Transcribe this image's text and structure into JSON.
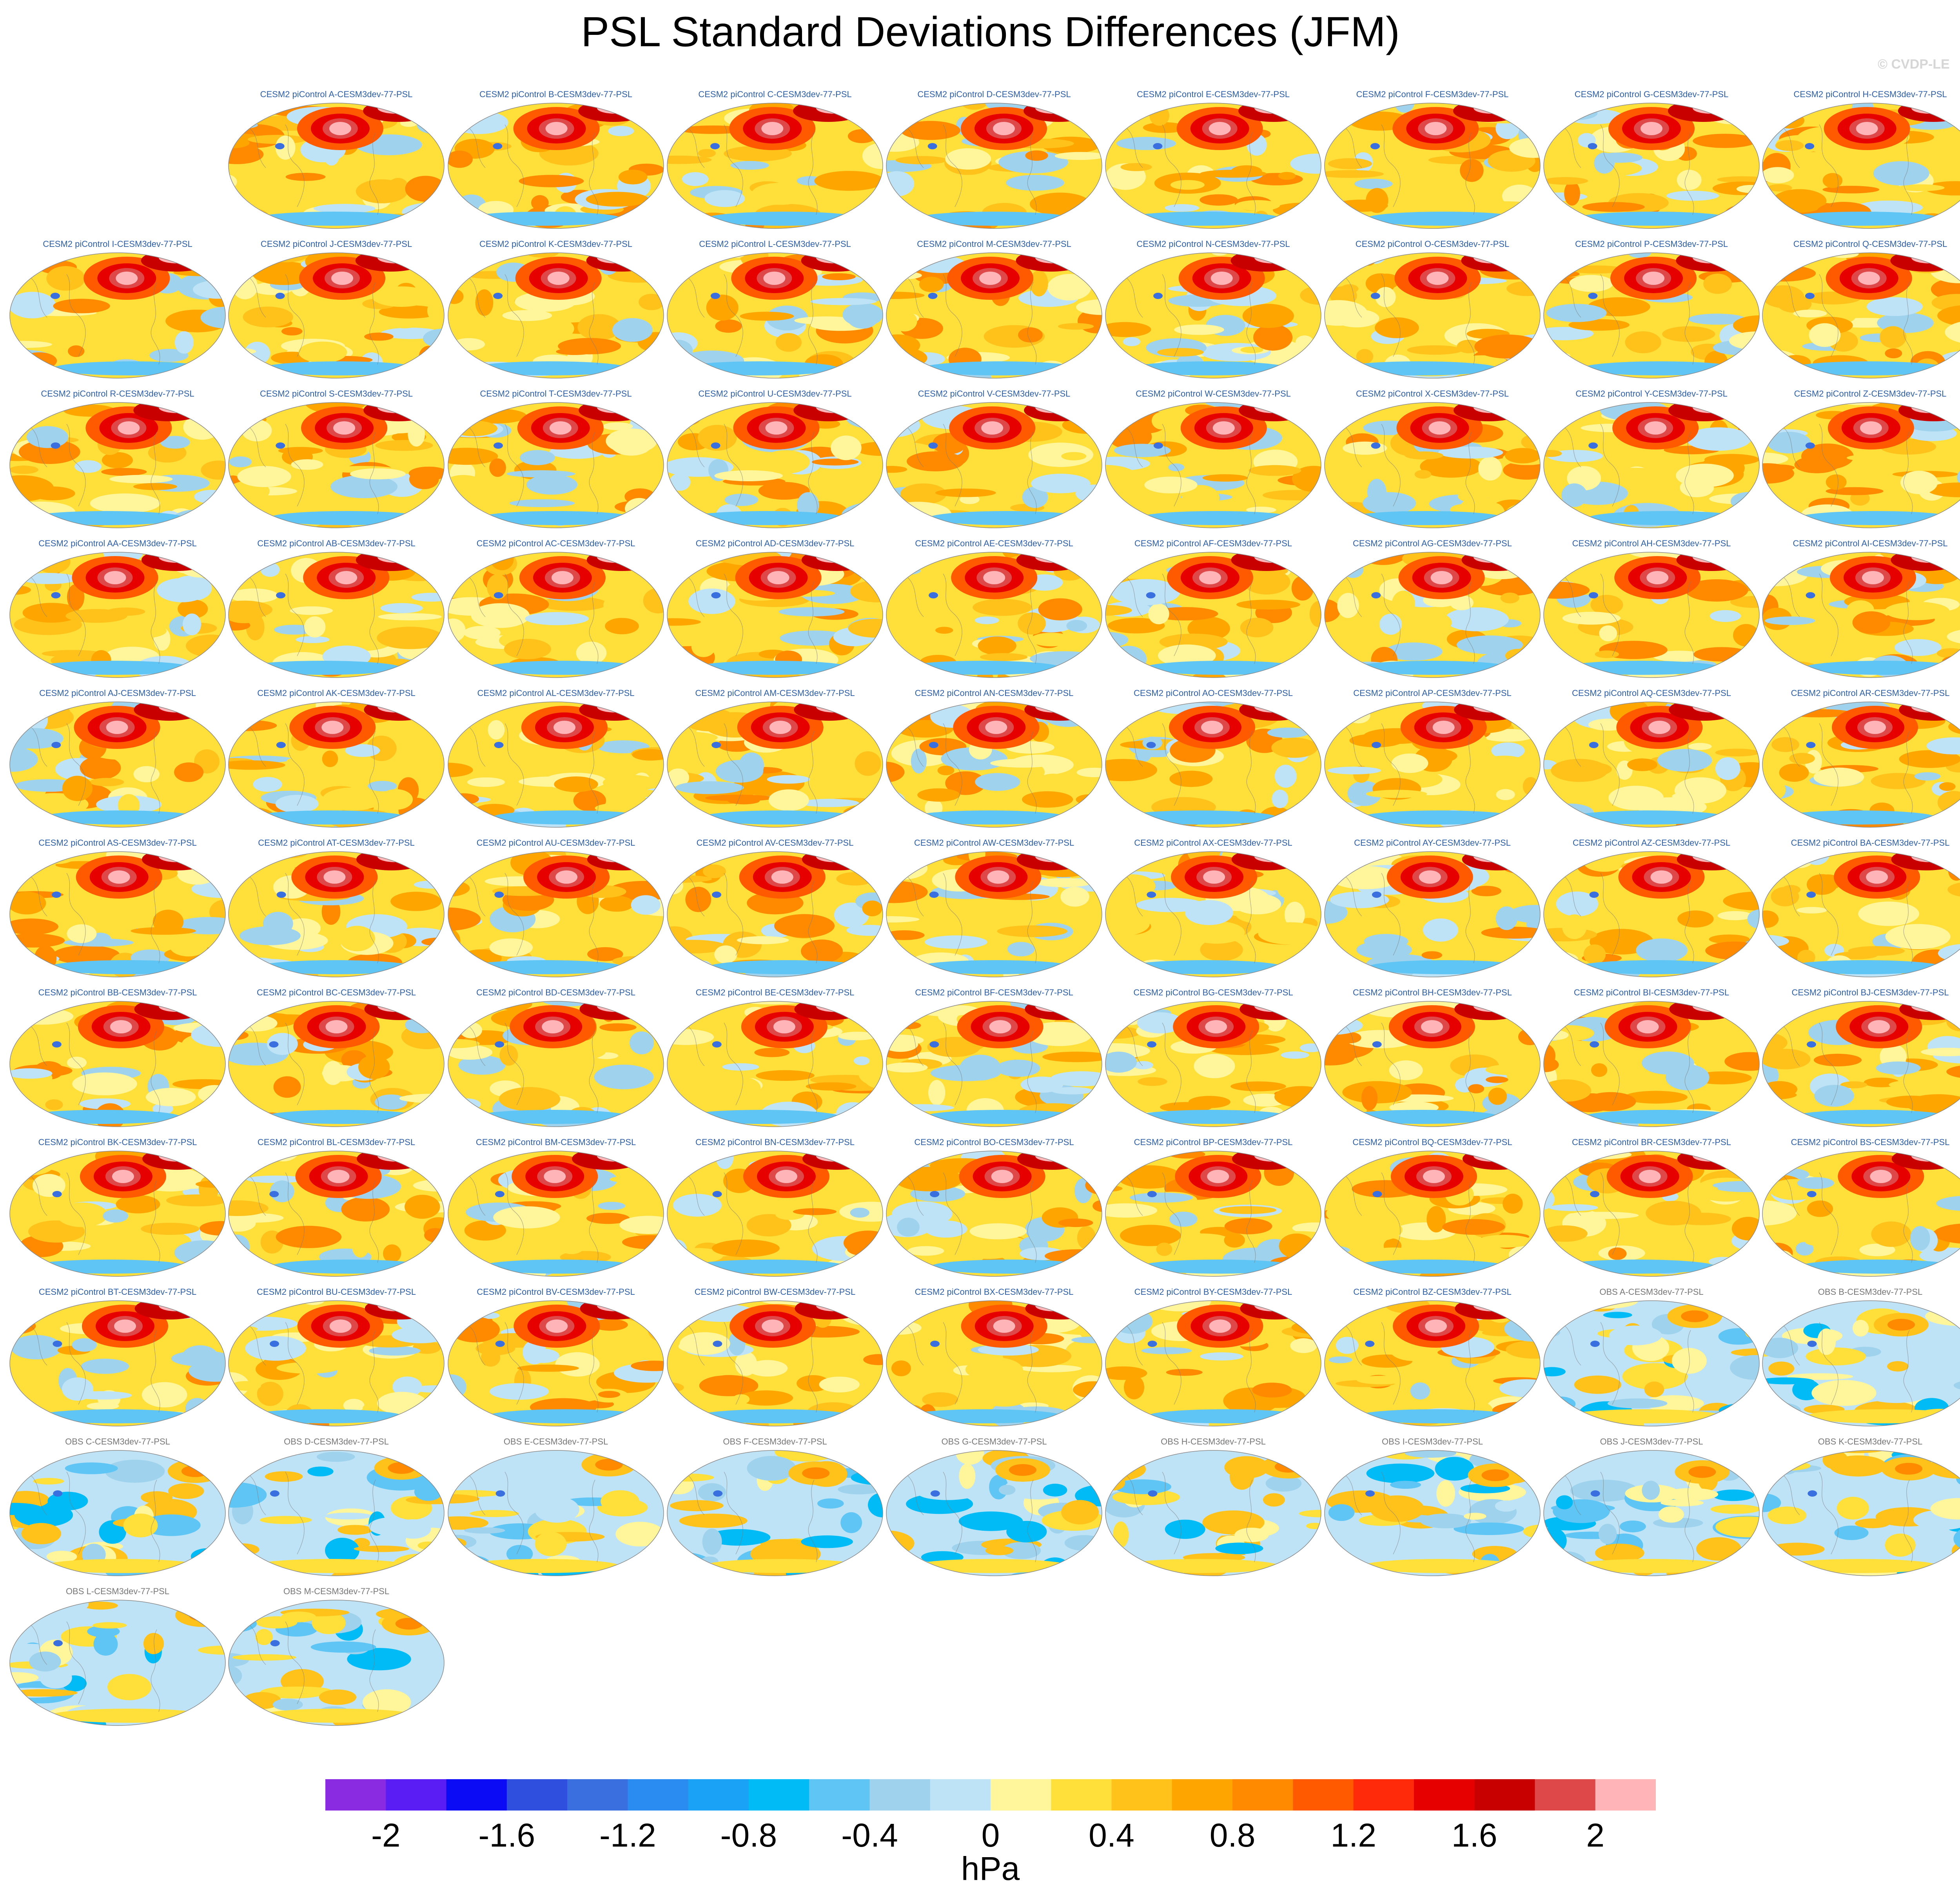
{
  "title": "PSL Standard Deviations Differences (JFM)",
  "watermark": "© CVDP-LE",
  "units": "hPa",
  "colorbar": {
    "colors": [
      "#8a2be2",
      "#5a1ef5",
      "#0b0bf5",
      "#2f4fdf",
      "#3a6fe0",
      "#2a8cf0",
      "#1aa3f6",
      "#00bbf5",
      "#5ec5f5",
      "#9fd2ec",
      "#bfe3f6",
      "#fff59a",
      "#ffdf3a",
      "#ffc21a",
      "#ffa500",
      "#ff8a00",
      "#ff5a00",
      "#ff2a0a",
      "#e60000",
      "#c80000",
      "#de4848",
      "#ffb5b8"
    ],
    "tick_labels": [
      "-2",
      "-1.6",
      "-1.2",
      "-0.8",
      "-0.4",
      "0",
      "0.4",
      "0.8",
      "1.2",
      "1.6",
      "2"
    ]
  },
  "chart_data": {
    "type": "heatmap",
    "title": "PSL Standard Deviations Differences (JFM)",
    "colorbar_units": "hPa",
    "colorbar_range": [
      -2.2,
      2.2
    ],
    "colorbar_interval": 0.2,
    "panels": [
      {
        "label": "CESM2 piControl A-CESM3dev-77-PSL",
        "source": "model"
      },
      {
        "label": "CESM2 piControl B-CESM3dev-77-PSL",
        "source": "model"
      },
      {
        "label": "CESM2 piControl C-CESM3dev-77-PSL",
        "source": "model"
      },
      {
        "label": "CESM2 piControl D-CESM3dev-77-PSL",
        "source": "model"
      },
      {
        "label": "CESM2 piControl E-CESM3dev-77-PSL",
        "source": "model"
      },
      {
        "label": "CESM2 piControl F-CESM3dev-77-PSL",
        "source": "model"
      },
      {
        "label": "CESM2 piControl G-CESM3dev-77-PSL",
        "source": "model"
      },
      {
        "label": "CESM2 piControl H-CESM3dev-77-PSL",
        "source": "model"
      },
      {
        "label": "CESM2 piControl I-CESM3dev-77-PSL",
        "source": "model"
      },
      {
        "label": "CESM2 piControl J-CESM3dev-77-PSL",
        "source": "model"
      },
      {
        "label": "CESM2 piControl K-CESM3dev-77-PSL",
        "source": "model"
      },
      {
        "label": "CESM2 piControl L-CESM3dev-77-PSL",
        "source": "model"
      },
      {
        "label": "CESM2 piControl M-CESM3dev-77-PSL",
        "source": "model"
      },
      {
        "label": "CESM2 piControl N-CESM3dev-77-PSL",
        "source": "model"
      },
      {
        "label": "CESM2 piControl O-CESM3dev-77-PSL",
        "source": "model"
      },
      {
        "label": "CESM2 piControl P-CESM3dev-77-PSL",
        "source": "model"
      },
      {
        "label": "CESM2 piControl Q-CESM3dev-77-PSL",
        "source": "model"
      },
      {
        "label": "CESM2 piControl R-CESM3dev-77-PSL",
        "source": "model"
      },
      {
        "label": "CESM2 piControl S-CESM3dev-77-PSL",
        "source": "model"
      },
      {
        "label": "CESM2 piControl T-CESM3dev-77-PSL",
        "source": "model"
      },
      {
        "label": "CESM2 piControl U-CESM3dev-77-PSL",
        "source": "model"
      },
      {
        "label": "CESM2 piControl V-CESM3dev-77-PSL",
        "source": "model"
      },
      {
        "label": "CESM2 piControl W-CESM3dev-77-PSL",
        "source": "model"
      },
      {
        "label": "CESM2 piControl X-CESM3dev-77-PSL",
        "source": "model"
      },
      {
        "label": "CESM2 piControl Y-CESM3dev-77-PSL",
        "source": "model"
      },
      {
        "label": "CESM2 piControl Z-CESM3dev-77-PSL",
        "source": "model"
      },
      {
        "label": "CESM2 piControl AA-CESM3dev-77-PSL",
        "source": "model"
      },
      {
        "label": "CESM2 piControl AB-CESM3dev-77-PSL",
        "source": "model"
      },
      {
        "label": "CESM2 piControl AC-CESM3dev-77-PSL",
        "source": "model"
      },
      {
        "label": "CESM2 piControl AD-CESM3dev-77-PSL",
        "source": "model"
      },
      {
        "label": "CESM2 piControl AE-CESM3dev-77-PSL",
        "source": "model"
      },
      {
        "label": "CESM2 piControl AF-CESM3dev-77-PSL",
        "source": "model"
      },
      {
        "label": "CESM2 piControl AG-CESM3dev-77-PSL",
        "source": "model"
      },
      {
        "label": "CESM2 piControl AH-CESM3dev-77-PSL",
        "source": "model"
      },
      {
        "label": "CESM2 piControl AI-CESM3dev-77-PSL",
        "source": "model"
      },
      {
        "label": "CESM2 piControl AJ-CESM3dev-77-PSL",
        "source": "model"
      },
      {
        "label": "CESM2 piControl AK-CESM3dev-77-PSL",
        "source": "model"
      },
      {
        "label": "CESM2 piControl AL-CESM3dev-77-PSL",
        "source": "model"
      },
      {
        "label": "CESM2 piControl AM-CESM3dev-77-PSL",
        "source": "model"
      },
      {
        "label": "CESM2 piControl AN-CESM3dev-77-PSL",
        "source": "model"
      },
      {
        "label": "CESM2 piControl AO-CESM3dev-77-PSL",
        "source": "model"
      },
      {
        "label": "CESM2 piControl AP-CESM3dev-77-PSL",
        "source": "model"
      },
      {
        "label": "CESM2 piControl AQ-CESM3dev-77-PSL",
        "source": "model"
      },
      {
        "label": "CESM2 piControl AR-CESM3dev-77-PSL",
        "source": "model"
      },
      {
        "label": "CESM2 piControl AS-CESM3dev-77-PSL",
        "source": "model"
      },
      {
        "label": "CESM2 piControl AT-CESM3dev-77-PSL",
        "source": "model"
      },
      {
        "label": "CESM2 piControl AU-CESM3dev-77-PSL",
        "source": "model"
      },
      {
        "label": "CESM2 piControl AV-CESM3dev-77-PSL",
        "source": "model"
      },
      {
        "label": "CESM2 piControl AW-CESM3dev-77-PSL",
        "source": "model"
      },
      {
        "label": "CESM2 piControl AX-CESM3dev-77-PSL",
        "source": "model"
      },
      {
        "label": "CESM2 piControl AY-CESM3dev-77-PSL",
        "source": "model"
      },
      {
        "label": "CESM2 piControl AZ-CESM3dev-77-PSL",
        "source": "model"
      },
      {
        "label": "CESM2 piControl BA-CESM3dev-77-PSL",
        "source": "model"
      },
      {
        "label": "CESM2 piControl BB-CESM3dev-77-PSL",
        "source": "model"
      },
      {
        "label": "CESM2 piControl BC-CESM3dev-77-PSL",
        "source": "model"
      },
      {
        "label": "CESM2 piControl BD-CESM3dev-77-PSL",
        "source": "model"
      },
      {
        "label": "CESM2 piControl BE-CESM3dev-77-PSL",
        "source": "model"
      },
      {
        "label": "CESM2 piControl BF-CESM3dev-77-PSL",
        "source": "model"
      },
      {
        "label": "CESM2 piControl BG-CESM3dev-77-PSL",
        "source": "model"
      },
      {
        "label": "CESM2 piControl BH-CESM3dev-77-PSL",
        "source": "model"
      },
      {
        "label": "CESM2 piControl BI-CESM3dev-77-PSL",
        "source": "model"
      },
      {
        "label": "CESM2 piControl BJ-CESM3dev-77-PSL",
        "source": "model"
      },
      {
        "label": "CESM2 piControl BK-CESM3dev-77-PSL",
        "source": "model"
      },
      {
        "label": "CESM2 piControl BL-CESM3dev-77-PSL",
        "source": "model"
      },
      {
        "label": "CESM2 piControl BM-CESM3dev-77-PSL",
        "source": "model"
      },
      {
        "label": "CESM2 piControl BN-CESM3dev-77-PSL",
        "source": "model"
      },
      {
        "label": "CESM2 piControl BO-CESM3dev-77-PSL",
        "source": "model"
      },
      {
        "label": "CESM2 piControl BP-CESM3dev-77-PSL",
        "source": "model"
      },
      {
        "label": "CESM2 piControl BQ-CESM3dev-77-PSL",
        "source": "model"
      },
      {
        "label": "CESM2 piControl BR-CESM3dev-77-PSL",
        "source": "model"
      },
      {
        "label": "CESM2 piControl BS-CESM3dev-77-PSL",
        "source": "model"
      },
      {
        "label": "CESM2 piControl BT-CESM3dev-77-PSL",
        "source": "model"
      },
      {
        "label": "CESM2 piControl BU-CESM3dev-77-PSL",
        "source": "model"
      },
      {
        "label": "CESM2 piControl BV-CESM3dev-77-PSL",
        "source": "model"
      },
      {
        "label": "CESM2 piControl BW-CESM3dev-77-PSL",
        "source": "model"
      },
      {
        "label": "CESM2 piControl BX-CESM3dev-77-PSL",
        "source": "model"
      },
      {
        "label": "CESM2 piControl BY-CESM3dev-77-PSL",
        "source": "model"
      },
      {
        "label": "CESM2 piControl BZ-CESM3dev-77-PSL",
        "source": "model"
      },
      {
        "label": "OBS A-CESM3dev-77-PSL",
        "source": "obs"
      },
      {
        "label": "OBS B-CESM3dev-77-PSL",
        "source": "obs"
      },
      {
        "label": "OBS C-CESM3dev-77-PSL",
        "source": "obs"
      },
      {
        "label": "OBS D-CESM3dev-77-PSL",
        "source": "obs"
      },
      {
        "label": "OBS E-CESM3dev-77-PSL",
        "source": "obs"
      },
      {
        "label": "OBS F-CESM3dev-77-PSL",
        "source": "obs"
      },
      {
        "label": "OBS G-CESM3dev-77-PSL",
        "source": "obs"
      },
      {
        "label": "OBS H-CESM3dev-77-PSL",
        "source": "obs"
      },
      {
        "label": "OBS I-CESM3dev-77-PSL",
        "source": "obs"
      },
      {
        "label": "OBS J-CESM3dev-77-PSL",
        "source": "obs"
      },
      {
        "label": "OBS K-CESM3dev-77-PSL",
        "source": "obs"
      },
      {
        "label": "OBS L-CESM3dev-77-PSL",
        "source": "obs"
      },
      {
        "label": "OBS M-CESM3dev-77-PSL",
        "source": "obs"
      }
    ]
  }
}
